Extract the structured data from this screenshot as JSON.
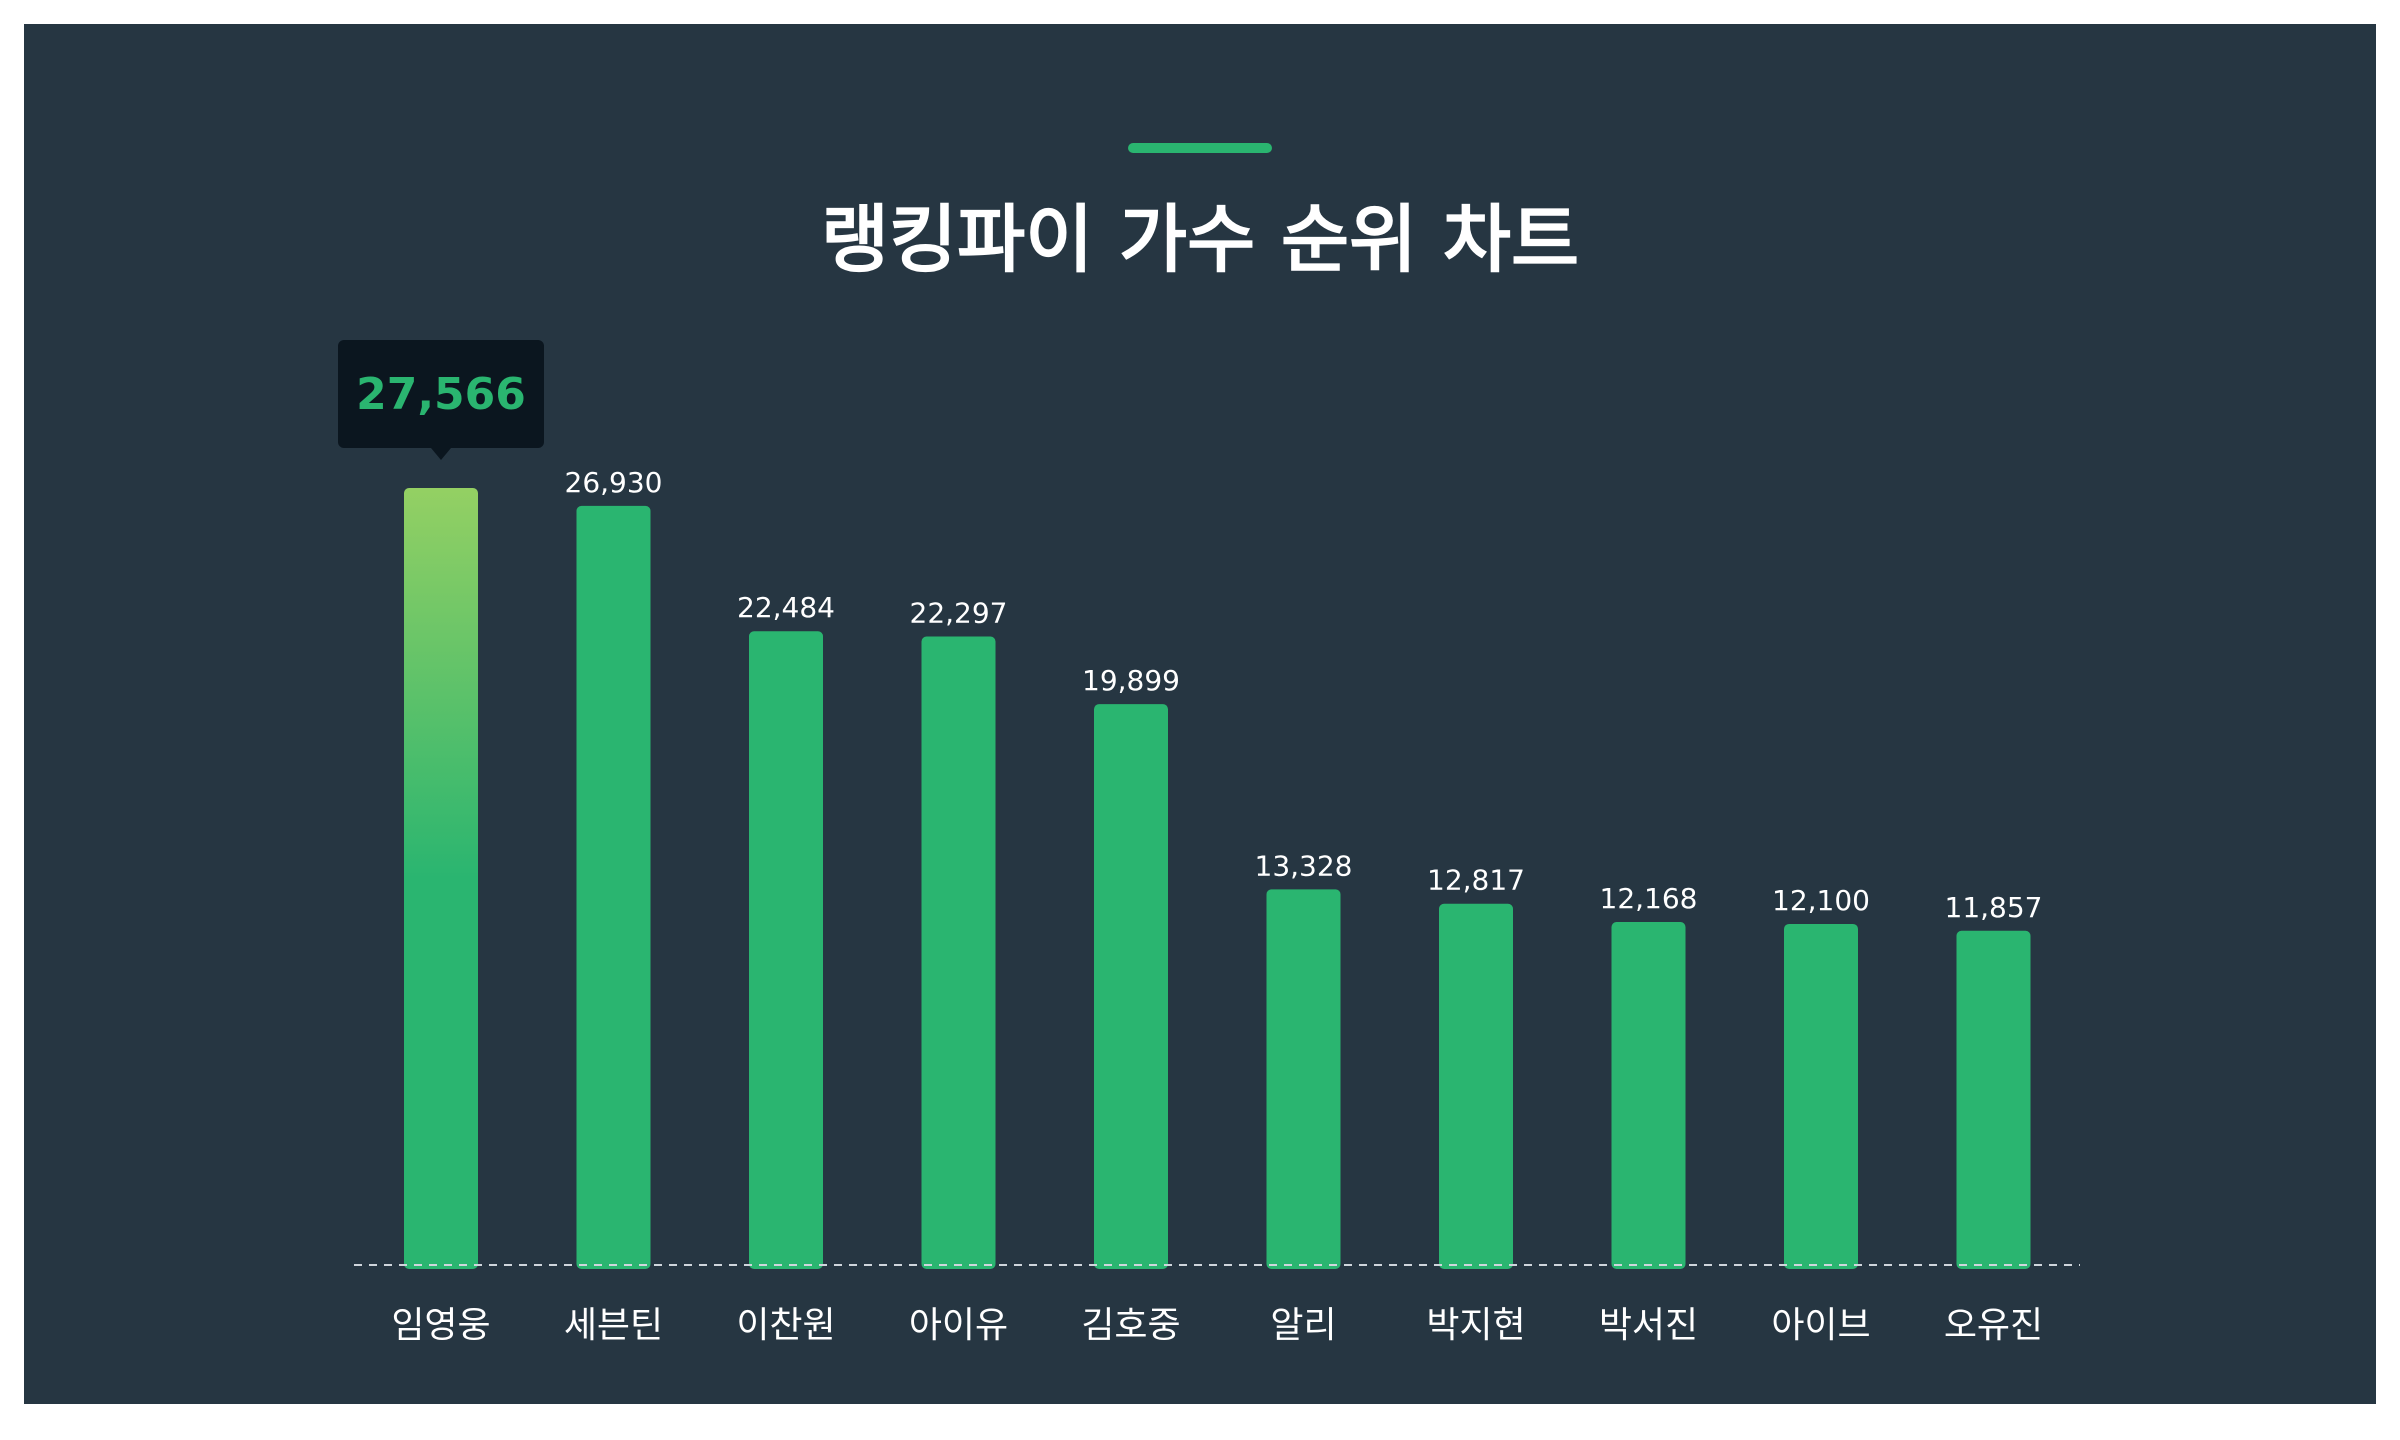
{
  "title": "랭킹파이 가수 순위 차트",
  "colors": {
    "background": "#263642",
    "bar": "#2ab570",
    "highlight_top": "#94d063",
    "tooltip_bg": "#0b161f",
    "label": "#ffffff",
    "baseline": "#cfd6dc"
  },
  "tooltip": {
    "value_label": "27,566"
  },
  "chart_data": {
    "type": "bar",
    "title": "랭킹파이 가수 순위 차트",
    "categories": [
      "임영웅",
      "세븐틴",
      "이찬원",
      "아이유",
      "김호중",
      "알리",
      "박지현",
      "박서진",
      "아이브",
      "오유진"
    ],
    "values": [
      27566,
      26930,
      22484,
      22297,
      19899,
      13328,
      12817,
      12168,
      12100,
      11857
    ],
    "value_labels": [
      "27,566",
      "26,930",
      "22,484",
      "22,297",
      "19,899",
      "13,328",
      "12,817",
      "12,168",
      "12,100",
      "11,857"
    ],
    "highlight_index": 0,
    "ylim": [
      0,
      27566
    ],
    "grid": false,
    "baseline": "dashed"
  }
}
